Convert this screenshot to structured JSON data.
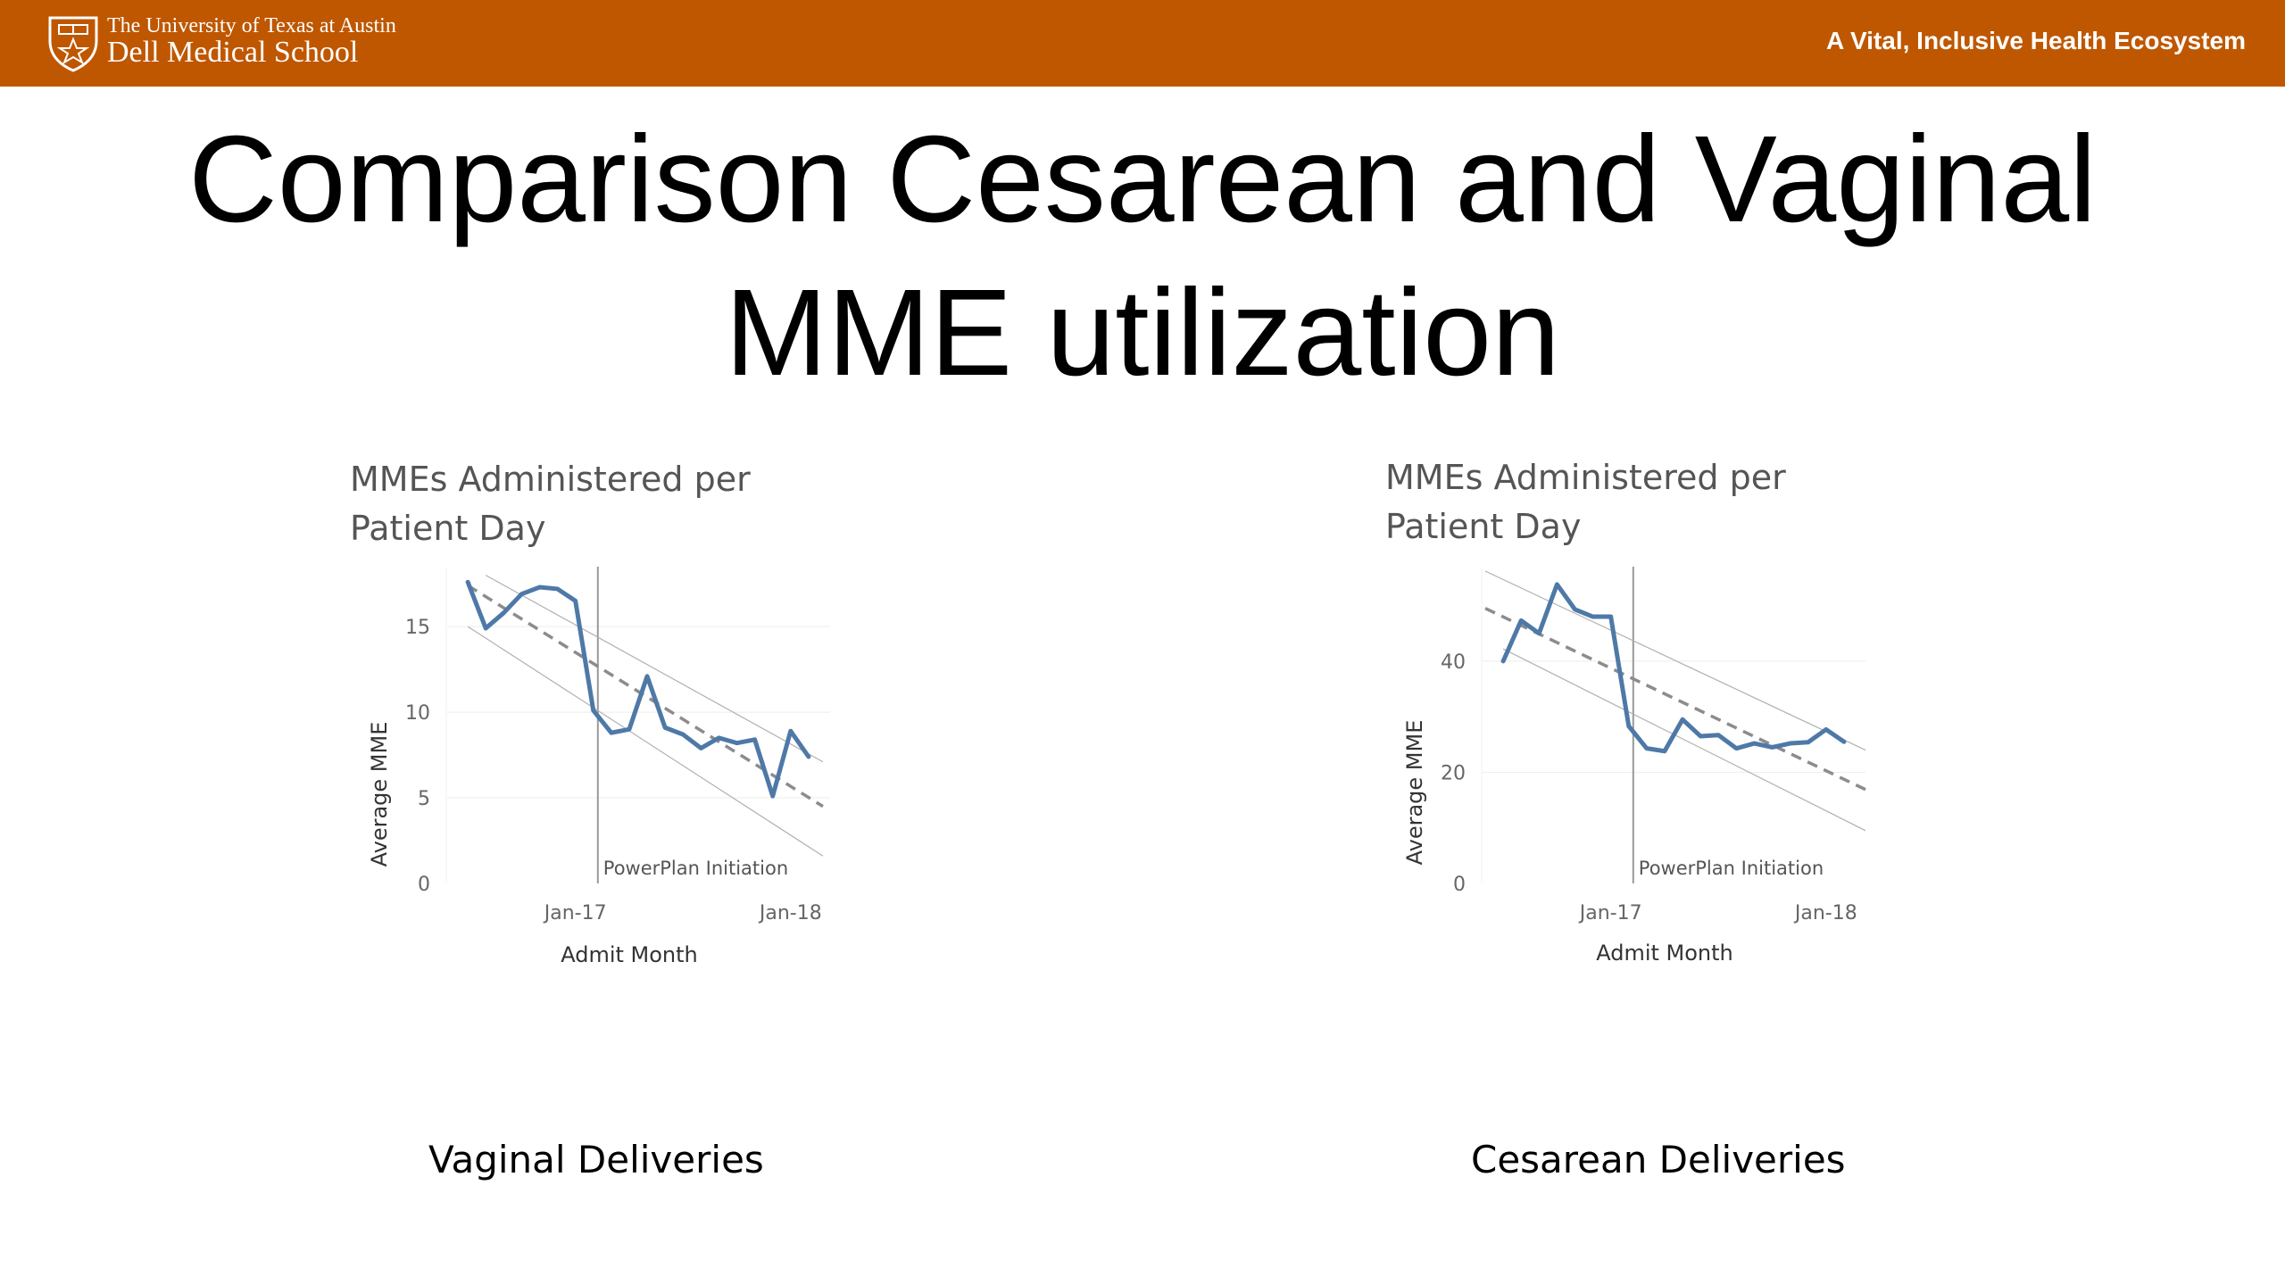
{
  "header": {
    "university": "The University of Texas at Austin",
    "school": "Dell Medical School",
    "tagline": "A Vital, Inclusive Health Ecosystem",
    "color": "#bf5700",
    "logo_icon": "ut-shield-icon"
  },
  "title": {
    "line1": "Comparison Cesarean and Vaginal",
    "line2": "MME utilization"
  },
  "captions": {
    "left": "Vaginal Deliveries",
    "right": "Cesarean Deliveries"
  },
  "chart_data": [
    {
      "type": "line",
      "title_line1": "MMEs Administered per",
      "title_line2": "Patient Day",
      "xlabel": "Admit Month",
      "ylabel": "Average MME",
      "ylim": [
        0,
        18.5
      ],
      "yticks": [
        0,
        5,
        10,
        15
      ],
      "xticks": [
        {
          "label": "Jan-17",
          "x": 6
        },
        {
          "label": "Jan-18",
          "x": 18
        }
      ],
      "xrange": [
        -1.2,
        20.2
      ],
      "annotation": {
        "text": "PowerPlan Initiation",
        "x": 7.25
      },
      "series": [
        {
          "color": "#4e79a7",
          "x": [
            0,
            1,
            2,
            3,
            4,
            5,
            6,
            7,
            8,
            9,
            10,
            11,
            12,
            13,
            14,
            15,
            16,
            17,
            18,
            19
          ],
          "y": [
            17.6,
            14.9,
            15.8,
            16.9,
            17.3,
            17.2,
            16.5,
            10.1,
            8.8,
            9.0,
            12.1,
            9.1,
            8.7,
            7.9,
            8.5,
            8.2,
            8.4,
            5.1,
            8.9,
            7.4
          ]
        }
      ],
      "trend": {
        "x": [
          0,
          19.8
        ],
        "y": [
          17.4,
          4.5
        ]
      },
      "band_upper": {
        "x": [
          1,
          19.8
        ],
        "y": [
          18.0,
          7.1
        ]
      },
      "band_lower": {
        "x": [
          0,
          19.8
        ],
        "y": [
          15.0,
          1.6
        ]
      }
    },
    {
      "type": "line",
      "title_line1": "MMEs Administered per",
      "title_line2": "Patient Day",
      "xlabel": "Admit Month",
      "ylabel": "Average MME",
      "ylim": [
        0,
        57
      ],
      "yticks": [
        0,
        20,
        40
      ],
      "xticks": [
        {
          "label": "Jan-17",
          "x": 6
        },
        {
          "label": "Jan-18",
          "x": 18
        }
      ],
      "xrange": [
        -1.2,
        20.2
      ],
      "annotation": {
        "text": "PowerPlan Initiation",
        "x": 7.25
      },
      "series": [
        {
          "color": "#4e79a7",
          "x": [
            0,
            1,
            2,
            3,
            4,
            5,
            6,
            7,
            8,
            9,
            10,
            11,
            12,
            13,
            14,
            15,
            16,
            17,
            18,
            19
          ],
          "y": [
            40.0,
            47.3,
            45.0,
            53.8,
            49.3,
            48.0,
            48.0,
            28.3,
            24.3,
            23.8,
            29.5,
            26.5,
            26.7,
            24.3,
            25.2,
            24.5,
            25.2,
            25.4,
            27.7,
            25.5
          ]
        }
      ],
      "trend": {
        "x": [
          -1,
          20.2
        ],
        "y": [
          49.5,
          16.9
        ]
      },
      "band_upper": {
        "x": [
          -1,
          20.2
        ],
        "y": [
          56.2,
          24.0
        ]
      },
      "band_lower": {
        "x": [
          0,
          20.2
        ],
        "y": [
          42.2,
          9.5
        ]
      }
    }
  ]
}
